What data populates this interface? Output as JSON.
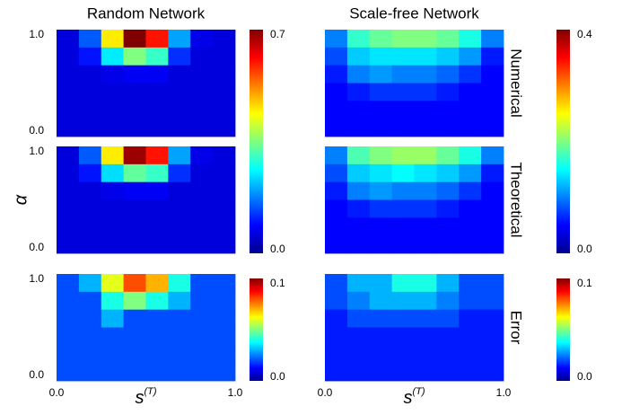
{
  "chart_data": [
    {
      "type": "heatmap",
      "title": "Random Network",
      "xlim": [
        0,
        1
      ],
      "ylim": [
        0,
        1
      ],
      "yticks": [
        {
          "value": 0,
          "label": "0.0"
        },
        {
          "value": 1,
          "label": "1.0"
        }
      ],
      "zlim": [
        0,
        0.7
      ],
      "zticks": [
        {
          "value": 0,
          "label": "0.0"
        },
        {
          "value": 0.7,
          "label": "0.7"
        }
      ],
      "values": [
        [
          0.06,
          0.15,
          0.45,
          0.7,
          0.6,
          0.2,
          0.07,
          0.06
        ],
        [
          0.06,
          0.1,
          0.25,
          0.35,
          0.3,
          0.12,
          0.06,
          0.06
        ],
        [
          0.06,
          0.06,
          0.07,
          0.08,
          0.08,
          0.06,
          0.06,
          0.06
        ],
        [
          0.06,
          0.06,
          0.06,
          0.06,
          0.06,
          0.06,
          0.06,
          0.06
        ],
        [
          0.06,
          0.06,
          0.06,
          0.06,
          0.06,
          0.06,
          0.06,
          0.06
        ],
        [
          0.06,
          0.06,
          0.06,
          0.06,
          0.06,
          0.06,
          0.06,
          0.06
        ]
      ]
    },
    {
      "type": "heatmap",
      "title": "Scale-free Network",
      "row_label": "Numerical",
      "xlim": [
        0,
        1
      ],
      "ylim": [
        0,
        1
      ],
      "zlim": [
        0,
        0.4
      ],
      "zticks": [
        {
          "value": 0,
          "label": "0.0"
        },
        {
          "value": 0.4,
          "label": "0.4"
        }
      ],
      "values": [
        [
          0.1,
          0.17,
          0.19,
          0.2,
          0.2,
          0.19,
          0.16,
          0.1
        ],
        [
          0.08,
          0.13,
          0.14,
          0.14,
          0.14,
          0.13,
          0.11,
          0.06
        ],
        [
          0.06,
          0.1,
          0.11,
          0.1,
          0.1,
          0.09,
          0.07,
          0.05
        ],
        [
          0.05,
          0.06,
          0.07,
          0.07,
          0.07,
          0.06,
          0.05,
          0.05
        ],
        [
          0.05,
          0.05,
          0.05,
          0.05,
          0.05,
          0.05,
          0.05,
          0.05
        ],
        [
          0.05,
          0.05,
          0.05,
          0.05,
          0.05,
          0.05,
          0.05,
          0.05
        ]
      ]
    },
    {
      "type": "heatmap",
      "ylabel": "α",
      "xlim": [
        0,
        1
      ],
      "ylim": [
        0,
        1
      ],
      "yticks": [
        {
          "value": 0,
          "label": "0.0"
        },
        {
          "value": 1,
          "label": "1.0"
        }
      ],
      "zlim": [
        0,
        0.7
      ],
      "values": [
        [
          0.06,
          0.15,
          0.45,
          0.68,
          0.6,
          0.2,
          0.07,
          0.06
        ],
        [
          0.06,
          0.1,
          0.24,
          0.33,
          0.3,
          0.12,
          0.06,
          0.06
        ],
        [
          0.06,
          0.06,
          0.07,
          0.08,
          0.08,
          0.06,
          0.06,
          0.06
        ],
        [
          0.06,
          0.06,
          0.06,
          0.06,
          0.06,
          0.06,
          0.06,
          0.06
        ],
        [
          0.06,
          0.06,
          0.06,
          0.06,
          0.06,
          0.06,
          0.06,
          0.06
        ],
        [
          0.06,
          0.06,
          0.06,
          0.06,
          0.06,
          0.06,
          0.06,
          0.06
        ]
      ]
    },
    {
      "type": "heatmap",
      "row_label": "Theoretical",
      "xlim": [
        0,
        1
      ],
      "ylim": [
        0,
        1
      ],
      "zlim": [
        0,
        0.4
      ],
      "values": [
        [
          0.1,
          0.18,
          0.2,
          0.21,
          0.21,
          0.19,
          0.16,
          0.1
        ],
        [
          0.08,
          0.13,
          0.14,
          0.15,
          0.14,
          0.13,
          0.11,
          0.06
        ],
        [
          0.06,
          0.1,
          0.11,
          0.1,
          0.1,
          0.09,
          0.07,
          0.05
        ],
        [
          0.05,
          0.06,
          0.07,
          0.07,
          0.07,
          0.06,
          0.05,
          0.05
        ],
        [
          0.05,
          0.05,
          0.05,
          0.05,
          0.05,
          0.05,
          0.05,
          0.05
        ],
        [
          0.05,
          0.05,
          0.05,
          0.05,
          0.05,
          0.05,
          0.05,
          0.05
        ]
      ]
    },
    {
      "type": "heatmap",
      "xlabel": {
        "text": "s",
        "sup": "(T)"
      },
      "xlim": [
        0,
        1
      ],
      "ylim": [
        0,
        1
      ],
      "xticks": [
        {
          "value": 0,
          "label": "0.0"
        },
        {
          "value": 1,
          "label": "1.0"
        }
      ],
      "yticks": [
        {
          "value": 0,
          "label": "0.0"
        },
        {
          "value": 1,
          "label": "1.0"
        }
      ],
      "zlim": [
        0,
        0.1
      ],
      "zticks": [
        {
          "value": 0,
          "label": "0.0"
        },
        {
          "value": 0.1,
          "label": "0.1"
        }
      ],
      "values": [
        [
          0.02,
          0.03,
          0.06,
          0.08,
          0.07,
          0.04,
          0.02,
          0.02
        ],
        [
          0.02,
          0.02,
          0.04,
          0.05,
          0.04,
          0.03,
          0.02,
          0.02
        ],
        [
          0.02,
          0.02,
          0.03,
          0.02,
          0.02,
          0.02,
          0.02,
          0.02
        ],
        [
          0.02,
          0.02,
          0.02,
          0.02,
          0.02,
          0.02,
          0.02,
          0.02
        ],
        [
          0.02,
          0.02,
          0.02,
          0.02,
          0.02,
          0.02,
          0.02,
          0.02
        ],
        [
          0.02,
          0.02,
          0.02,
          0.02,
          0.02,
          0.02,
          0.02,
          0.02
        ]
      ]
    },
    {
      "type": "heatmap",
      "row_label": "Error",
      "xlabel": {
        "text": "s",
        "sup": "(T)"
      },
      "xlim": [
        0,
        1
      ],
      "ylim": [
        0,
        1
      ],
      "xticks": [
        {
          "value": 0,
          "label": "0.0"
        },
        {
          "value": 1,
          "label": "1.0"
        }
      ],
      "zlim": [
        0,
        0.1
      ],
      "zticks": [
        {
          "value": 0,
          "label": "0.0"
        },
        {
          "value": 0.1,
          "label": "0.1"
        }
      ],
      "values": [
        [
          0.02,
          0.03,
          0.03,
          0.04,
          0.04,
          0.03,
          0.02,
          0.02
        ],
        [
          0.02,
          0.025,
          0.03,
          0.03,
          0.03,
          0.025,
          0.02,
          0.02
        ],
        [
          0.015,
          0.02,
          0.02,
          0.02,
          0.02,
          0.02,
          0.015,
          0.015
        ],
        [
          0.015,
          0.015,
          0.015,
          0.015,
          0.015,
          0.015,
          0.015,
          0.015
        ],
        [
          0.015,
          0.015,
          0.015,
          0.015,
          0.015,
          0.015,
          0.015,
          0.015
        ],
        [
          0.015,
          0.015,
          0.015,
          0.015,
          0.015,
          0.015,
          0.015,
          0.015
        ]
      ]
    }
  ]
}
